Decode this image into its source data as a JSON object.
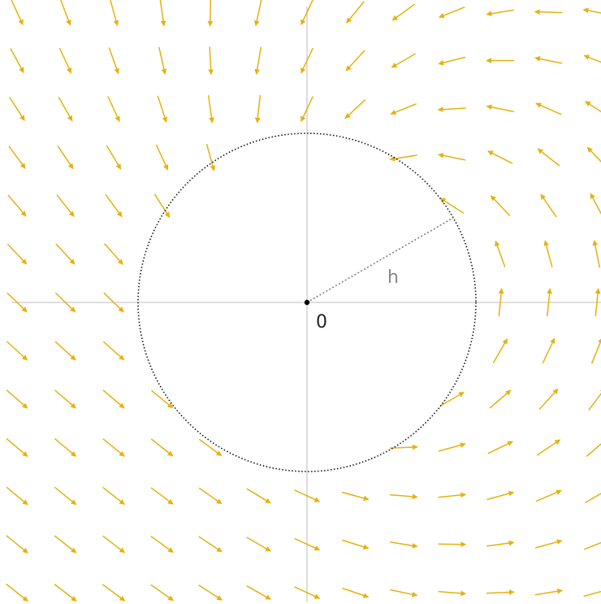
{
  "diagram": {
    "origin_label": "0",
    "radius_label": "h",
    "colors": {
      "arrow": "#e6b10e",
      "axis": "#d2d2d2",
      "circle": "#111111",
      "radius_line": "#808080",
      "radius_label": "#888888",
      "origin_dot": "#000000",
      "origin_label": "#222222",
      "background": "#ffffff"
    },
    "vector_field": {
      "description_kind": "2D vector field sampled on a regular grid, omitted inside the circle",
      "grid_spacing_units": 1,
      "x_range": [
        -6,
        6
      ],
      "y_range": [
        -6,
        6
      ],
      "circle_radius_units": 3.5,
      "radius_direction_deg": 30
    }
  }
}
